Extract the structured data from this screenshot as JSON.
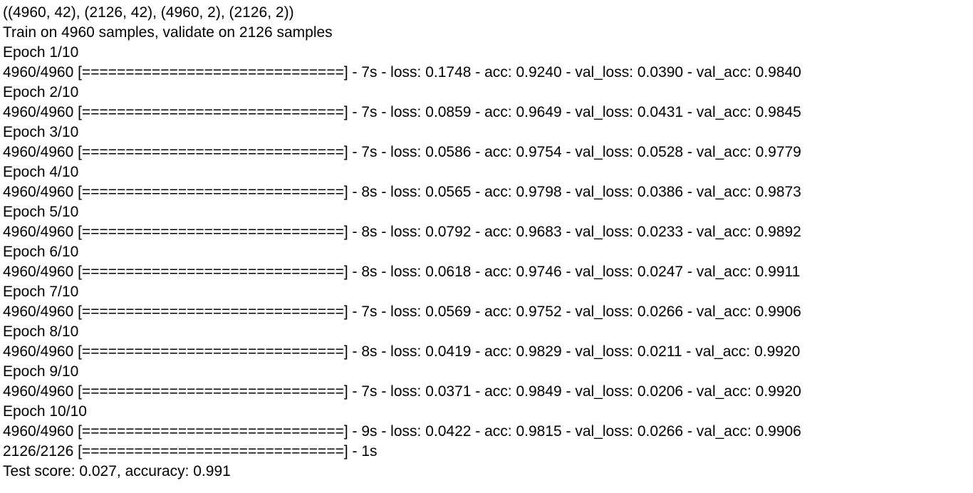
{
  "log": {
    "lines": [
      "((4960, 42), (2126, 42), (4960, 2), (2126, 2))",
      "Train on 4960 samples, validate on 2126 samples",
      "Epoch 1/10",
      "4960/4960 [==============================] - 7s - loss: 0.1748 - acc: 0.9240 - val_loss: 0.0390 - val_acc: 0.9840",
      "Epoch 2/10",
      "4960/4960 [==============================] - 7s - loss: 0.0859 - acc: 0.9649 - val_loss: 0.0431 - val_acc: 0.9845",
      "Epoch 3/10",
      "4960/4960 [==============================] - 7s - loss: 0.0586 - acc: 0.9754 - val_loss: 0.0528 - val_acc: 0.9779",
      "Epoch 4/10",
      "4960/4960 [==============================] - 8s - loss: 0.0565 - acc: 0.9798 - val_loss: 0.0386 - val_acc: 0.9873",
      "Epoch 5/10",
      "4960/4960 [==============================] - 8s - loss: 0.0792 - acc: 0.9683 - val_loss: 0.0233 - val_acc: 0.9892",
      "Epoch 6/10",
      "4960/4960 [==============================] - 8s - loss: 0.0618 - acc: 0.9746 - val_loss: 0.0247 - val_acc: 0.9911",
      "Epoch 7/10",
      "4960/4960 [==============================] - 7s - loss: 0.0569 - acc: 0.9752 - val_loss: 0.0266 - val_acc: 0.9906",
      "Epoch 8/10",
      "4960/4960 [==============================] - 8s - loss: 0.0419 - acc: 0.9829 - val_loss: 0.0211 - val_acc: 0.9920",
      "Epoch 9/10",
      "4960/4960 [==============================] - 7s - loss: 0.0371 - acc: 0.9849 - val_loss: 0.0206 - val_acc: 0.9920",
      "Epoch 10/10",
      "4960/4960 [==============================] - 9s - loss: 0.0422 - acc: 0.9815 - val_loss: 0.0266 - val_acc: 0.9906",
      "2126/2126 [==============================] - 1s",
      "Test score: 0.027, accuracy: 0.991"
    ]
  }
}
